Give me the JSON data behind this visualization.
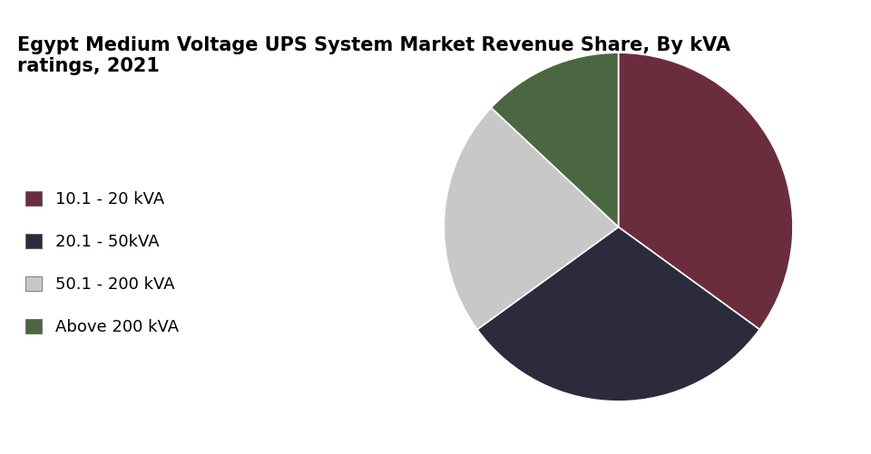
{
  "title": "Egypt Medium Voltage UPS System Market Revenue Share, By kVA\nratings, 2021",
  "slices": [
    {
      "label": "10.1 - 20 kVA",
      "value": 35,
      "color": "#6B2D3E"
    },
    {
      "label": "20.1 - 50kVA",
      "value": 30,
      "color": "#2B2B3B"
    },
    {
      "label": "50.1 - 200 kVA",
      "value": 22,
      "color": "#C8C8C8"
    },
    {
      "label": "Above 200 kVA",
      "value": 13,
      "color": "#4A6741"
    }
  ],
  "background_color": "#FFFFFF",
  "title_fontsize": 15,
  "legend_fontsize": 13,
  "startangle": 90
}
